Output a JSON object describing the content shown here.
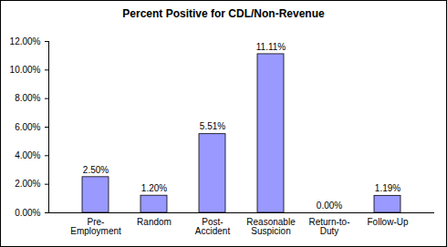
{
  "chart_data": {
    "type": "bar",
    "title": "Percent Positive for CDL/Non-Revenue",
    "categories": [
      "Pre-\nEmployment",
      "Random",
      "Post-\nAccident",
      "Reasonable\nSuspicion",
      "Return-to-\nDuty",
      "Follow-Up"
    ],
    "values": [
      2.5,
      1.2,
      5.51,
      11.11,
      0,
      1.19
    ],
    "value_labels": [
      "2.50%",
      "1.20%",
      "5.51%",
      "11.11%",
      "0.00%",
      "1.19%"
    ],
    "data_labels": true,
    "color": "#9999ff",
    "ylim": [
      0,
      12
    ],
    "yticks": [
      {
        "value": 0,
        "label": "0.00%"
      },
      {
        "value": 2,
        "label": "2.00%"
      },
      {
        "value": 4,
        "label": "4.00%"
      },
      {
        "value": 6,
        "label": "6.00%"
      },
      {
        "value": 8,
        "label": "8.00%"
      },
      {
        "value": 10,
        "label": "10.00%"
      },
      {
        "value": 12,
        "label": "12.00%"
      }
    ],
    "grid": false
  }
}
